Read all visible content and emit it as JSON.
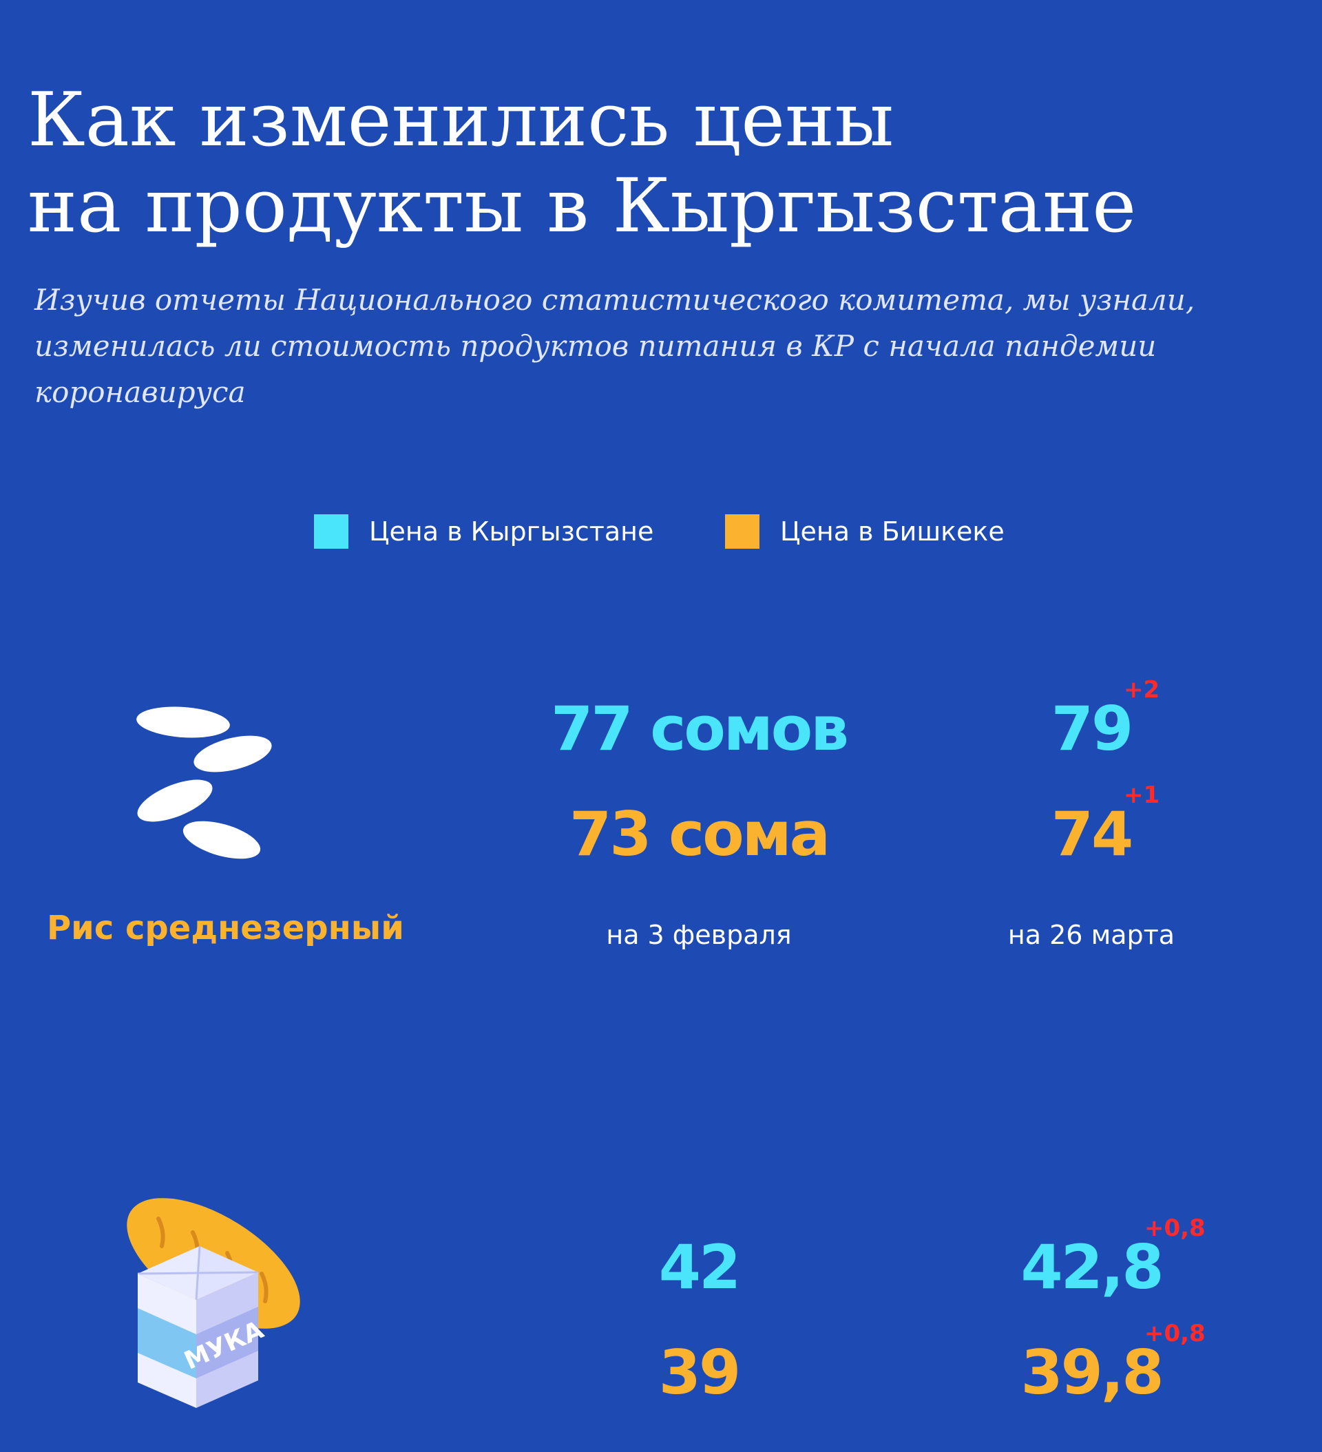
{
  "header": {
    "title_lines": [
      "Как изменились цены",
      "на продукты в Кыргызстане"
    ],
    "subtitle_lines": [
      "Изучив отчеты Национального статистического комитета, мы узнали,",
      "изменилась ли стоимость продуктов питания в КР с начала пандемии",
      "коронавируса"
    ]
  },
  "legend": {
    "items": [
      {
        "label": "Цена в Кыргызстане",
        "color": "#4be5fb"
      },
      {
        "label": "Цена в Бишкеке",
        "color": "#fbb22f"
      }
    ]
  },
  "colors": {
    "background": "#1e4ab4",
    "kyrgyzstan": "#4be5fb",
    "bishkek": "#fbb22f",
    "increase": "#ff2b2b"
  },
  "products": [
    {
      "name": "Рис среднезерный",
      "icon": "rice-grains-icon",
      "date_before": "на 3 февраля",
      "date_after": "на 26 марта",
      "kg_before": "77 сомов",
      "kg_after": "79",
      "kg_delta": "+2",
      "bishkek_before": "73 сома",
      "bishkek_after": "74",
      "bishkek_delta": "+1"
    },
    {
      "name": "",
      "icon": "flour-bag-bread-icon",
      "icon_text": "МУКА",
      "kg_before": "42",
      "kg_after": "42,8",
      "kg_delta": "+0,8",
      "bishkek_before": "39",
      "bishkek_after": "39,8",
      "bishkek_delta": "+0,8"
    }
  ]
}
